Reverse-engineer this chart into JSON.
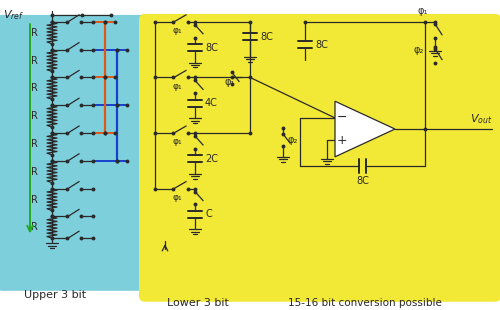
{
  "bg_color": "#ffffff",
  "cyan_bg": "#7ecfdc",
  "yellow_bg": "#f2e836",
  "dark": "#2a2a2a",
  "green_col": "#22aa22",
  "orange_col": "#e05818",
  "blue_col": "#1840cc",
  "upper_label": "Upper 3 bit",
  "lower_label": "Lower 3 bit",
  "right_label": "15-16 bit conversion possible",
  "phi1": "φ₁",
  "phi2": "φ₂",
  "R": "R",
  "cap_labels": [
    "8C",
    "4C",
    "2C",
    "C"
  ]
}
